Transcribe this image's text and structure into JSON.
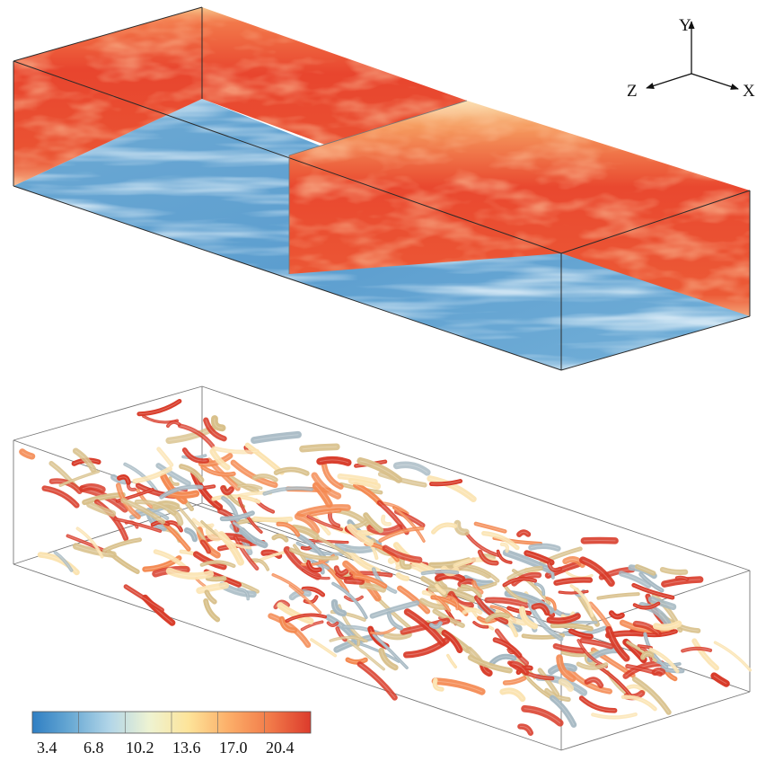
{
  "axes_triad": {
    "y_label": "Y",
    "z_label": "Z",
    "x_label": "X"
  },
  "colorbar": {
    "tick_labels": [
      "3.4",
      "6.8",
      "10.2",
      "13.6",
      "17.0",
      "20.4"
    ],
    "colors": [
      "#2f7fc3",
      "#6aaad4",
      "#b3d6e8",
      "#eef3d2",
      "#fde49a",
      "#fcb06a",
      "#f27c4a",
      "#dc3b2c"
    ]
  },
  "palette": {
    "wall_blue": "#5da1d0",
    "wall_blue_light": "#c2dcec",
    "side_red": "#e8452e",
    "side_orange": "#f48a52",
    "side_cream": "#fbe3b0",
    "vortex_tan": "#d8c08a",
    "vortex_grey": "#a5b8c2",
    "vortex_red": "#d83a28"
  }
}
